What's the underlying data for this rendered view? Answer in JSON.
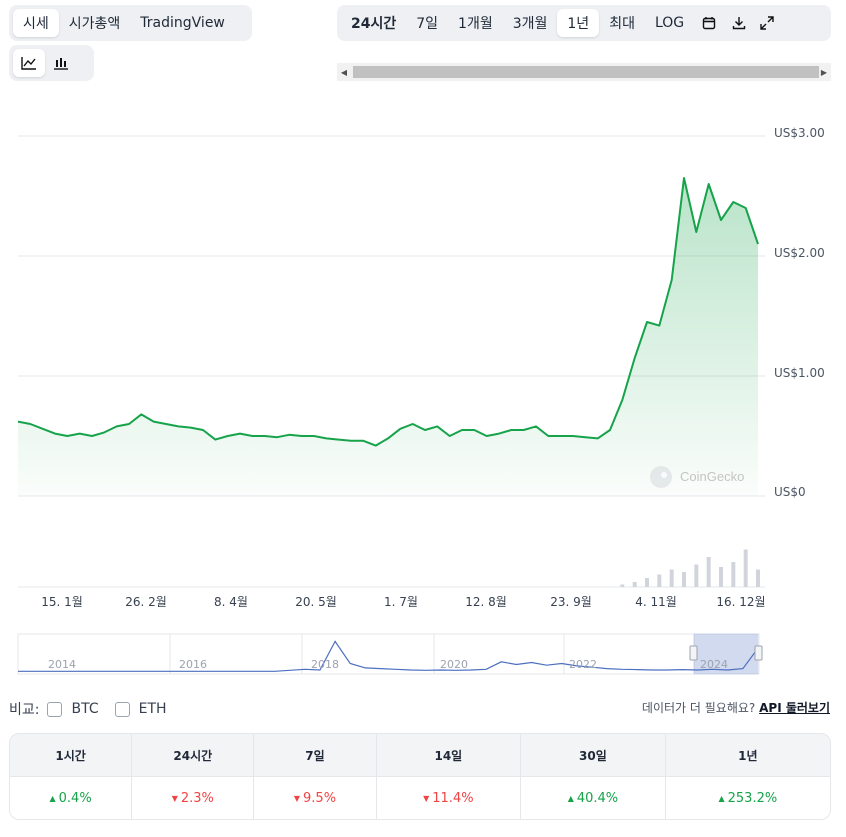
{
  "view_tabs": [
    "시세",
    "시가총액",
    "TradingView"
  ],
  "active_view": "시세",
  "range_tabs": [
    "24시간",
    "7일",
    "1개월",
    "3개월",
    "1년",
    "최대",
    "LOG"
  ],
  "active_range": "1년",
  "colors": {
    "line": "#16a34a",
    "up": "#16a34a",
    "down": "#ef4444",
    "navigator": "#4c6fbf"
  },
  "chart_data": {
    "type": "line",
    "y_axis_labels": [
      "US$3.00",
      "US$2.00",
      "US$1.00",
      "US$0"
    ],
    "x_axis_labels": [
      "15. 1월",
      "26. 2월",
      "8. 4월",
      "20. 5월",
      "1. 7월",
      "12. 8월",
      "23. 9월",
      "4. 11월",
      "16. 12월"
    ],
    "ylim": [
      0,
      3
    ],
    "watermark": "CoinGecko",
    "series": [
      {
        "values": [
          0.62,
          0.6,
          0.56,
          0.52,
          0.5,
          0.52,
          0.5,
          0.53,
          0.58,
          0.6,
          0.68,
          0.62,
          0.6,
          0.58,
          0.57,
          0.55,
          0.47,
          0.5,
          0.52,
          0.5,
          0.5,
          0.49,
          0.51,
          0.5,
          0.5,
          0.48,
          0.47,
          0.46,
          0.46,
          0.42,
          0.48,
          0.56,
          0.6,
          0.55,
          0.58,
          0.5,
          0.55,
          0.55,
          0.5,
          0.52,
          0.55,
          0.55,
          0.58,
          0.5,
          0.5,
          0.5,
          0.49,
          0.48,
          0.55,
          0.8,
          1.15,
          1.45,
          1.42,
          1.8,
          2.65,
          2.2,
          2.6,
          2.3,
          2.45,
          2.4,
          2.1
        ]
      }
    ],
    "volume": [
      0,
      0,
      0,
      0,
      0,
      0,
      0,
      0,
      0,
      0,
      0,
      0,
      0,
      0,
      0,
      0,
      0,
      0,
      0,
      0,
      0,
      0,
      0,
      0,
      0,
      0,
      0,
      0,
      0,
      0,
      0,
      0,
      0,
      0,
      0,
      0,
      0,
      0,
      0,
      0,
      0,
      0,
      0,
      0,
      0,
      0,
      0,
      0,
      0,
      0.05,
      0.1,
      0.18,
      0.25,
      0.35,
      0.3,
      0.45,
      0.6,
      0.4,
      0.5,
      0.75,
      0.35
    ],
    "navigator_labels": [
      "2014",
      "2016",
      "2018",
      "2020",
      "2022",
      "2024"
    ]
  },
  "compare": {
    "label": "비교:",
    "options": [
      "BTC",
      "ETH"
    ]
  },
  "api": {
    "question": "데이터가 더 필요해요?",
    "link": "API 둘러보기"
  },
  "performance": [
    {
      "period": "1시간",
      "change": "0.4%",
      "dir": "up"
    },
    {
      "period": "24시간",
      "change": "2.3%",
      "dir": "down"
    },
    {
      "period": "7일",
      "change": "9.5%",
      "dir": "down"
    },
    {
      "period": "14일",
      "change": "11.4%",
      "dir": "down"
    },
    {
      "period": "30일",
      "change": "40.4%",
      "dir": "up"
    },
    {
      "period": "1년",
      "change": "253.2%",
      "dir": "up"
    }
  ]
}
